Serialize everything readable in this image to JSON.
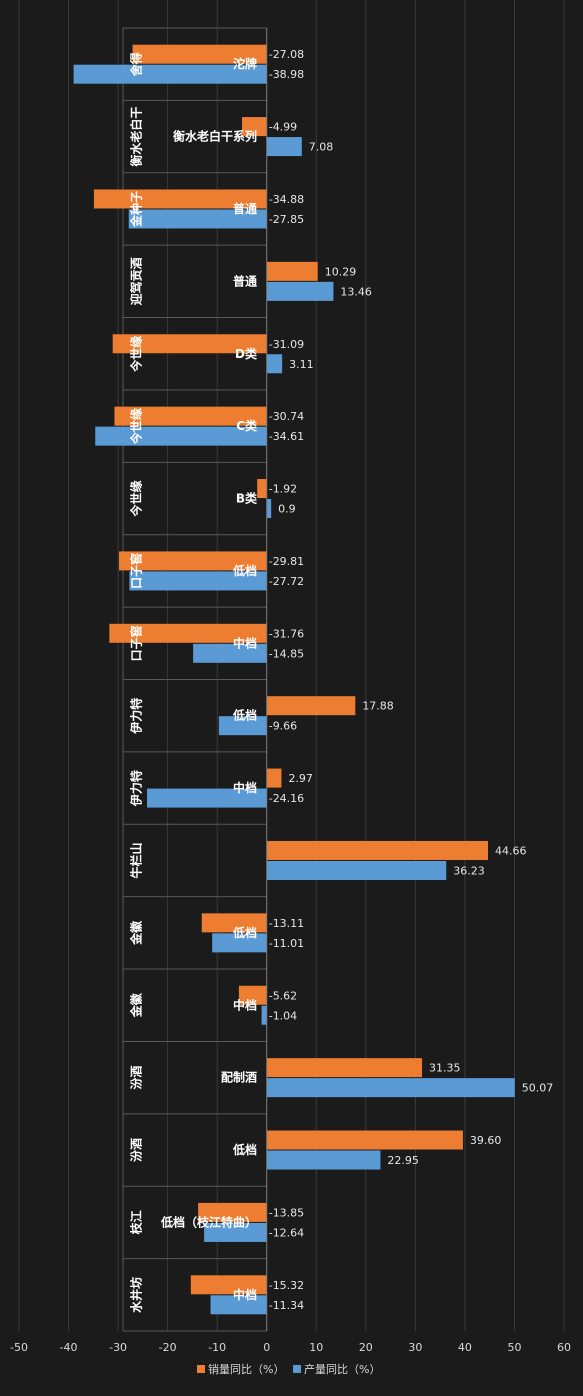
{
  "chart_data": {
    "type": "bar",
    "orientation": "horizontal",
    "title": "",
    "xlabel": "",
    "ylabel": "",
    "xlim": [
      -50,
      60
    ],
    "x_ticks": [
      -50,
      -40,
      -30,
      -20,
      -10,
      0,
      10,
      20,
      30,
      40,
      50,
      60
    ],
    "grid": true,
    "legend_position": "bottom-center",
    "categories": [
      {
        "group": "舍得",
        "sub": "沱牌"
      },
      {
        "group": "衡水老白干",
        "sub": "衡水老白干系列"
      },
      {
        "group": "金种子",
        "sub": "普通"
      },
      {
        "group": "迎驾贡酒",
        "sub": "普通"
      },
      {
        "group": "今世缘",
        "sub": "D类"
      },
      {
        "group": "今世缘",
        "sub": "C类"
      },
      {
        "group": "今世缘",
        "sub": "B类"
      },
      {
        "group": "口子窖",
        "sub": "低档"
      },
      {
        "group": "口子窖",
        "sub": "中档"
      },
      {
        "group": "伊力特",
        "sub": "低档"
      },
      {
        "group": "伊力特",
        "sub": "中档"
      },
      {
        "group": "牛栏山",
        "sub": ""
      },
      {
        "group": "金徽",
        "sub": "低档"
      },
      {
        "group": "金徽",
        "sub": "中档"
      },
      {
        "group": "汾酒",
        "sub": "配制酒"
      },
      {
        "group": "汾酒",
        "sub": "低档"
      },
      {
        "group": "枝江",
        "sub": "低档（枝江特曲）"
      },
      {
        "group": "水井坊",
        "sub": "中档"
      }
    ],
    "series": [
      {
        "name": "销量同比（%）",
        "color": "#ed7d31",
        "values": [
          -27.08,
          -4.99,
          -34.88,
          10.29,
          -31.09,
          -30.74,
          -1.92,
          -29.81,
          -31.76,
          17.88,
          2.97,
          44.66,
          -13.11,
          -5.62,
          31.35,
          39.6,
          -13.85,
          -15.32
        ],
        "labels": [
          "-27.08",
          "-4.99",
          "-34.88",
          "10.29",
          "-31.09",
          "-30.74",
          "-1.92",
          "-29.81",
          "-31.76",
          "17.88",
          "2.97",
          "44.66",
          "-13.11",
          "-5.62",
          "31.35",
          "39.60",
          "-13.85",
          "-15.32"
        ]
      },
      {
        "name": "产量同比（%）",
        "color": "#5b9bd5",
        "values": [
          -38.98,
          7.08,
          -27.85,
          13.46,
          3.11,
          -34.61,
          0.9,
          -27.72,
          -14.85,
          -9.66,
          -24.16,
          36.23,
          -11.01,
          -1.04,
          50.07,
          22.95,
          -12.64,
          -11.34
        ],
        "labels": [
          "-38.98",
          "7.08",
          "-27.85",
          "13.46",
          "3.11",
          "-34.61",
          "0.9",
          "-27.72",
          "-14.85",
          "-9.66",
          "-24.16",
          "36.23",
          "-11.01",
          "-1.04",
          "50.07",
          "22.95",
          "-12.64",
          "-11.34"
        ]
      }
    ]
  }
}
